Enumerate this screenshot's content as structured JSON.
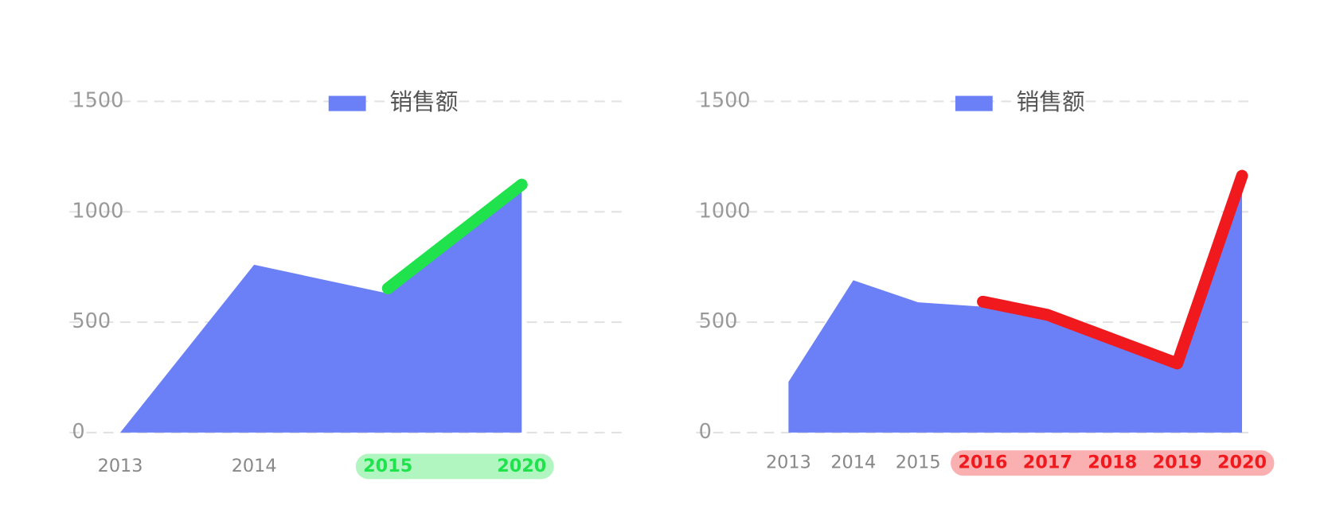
{
  "chart_data": [
    {
      "type": "area",
      "categories": [
        "2013",
        "2014",
        "2015",
        "2020"
      ],
      "series": [
        {
          "name": "销售额",
          "color": "#6b80f6",
          "values": [
            0,
            760,
            630,
            1100
          ]
        }
      ],
      "ylim": [
        0,
        1500
      ],
      "yticks": [
        0,
        500,
        1000,
        1500
      ],
      "grid": true,
      "highlight": {
        "from": 2,
        "color": "#1fe24c"
      }
    },
    {
      "type": "area",
      "categories": [
        "2013",
        "2014",
        "2015",
        "2016",
        "2017",
        "2018",
        "2019",
        "2020"
      ],
      "series": [
        {
          "name": "销售额",
          "color": "#6b80f6",
          "values": [
            230,
            690,
            590,
            570,
            510,
            400,
            290,
            1140
          ]
        }
      ],
      "ylim": [
        0,
        1500
      ],
      "yticks": [
        0,
        500,
        1000,
        1500
      ],
      "grid": true,
      "highlight": {
        "from": 3,
        "color": "#f0191e"
      }
    }
  ]
}
